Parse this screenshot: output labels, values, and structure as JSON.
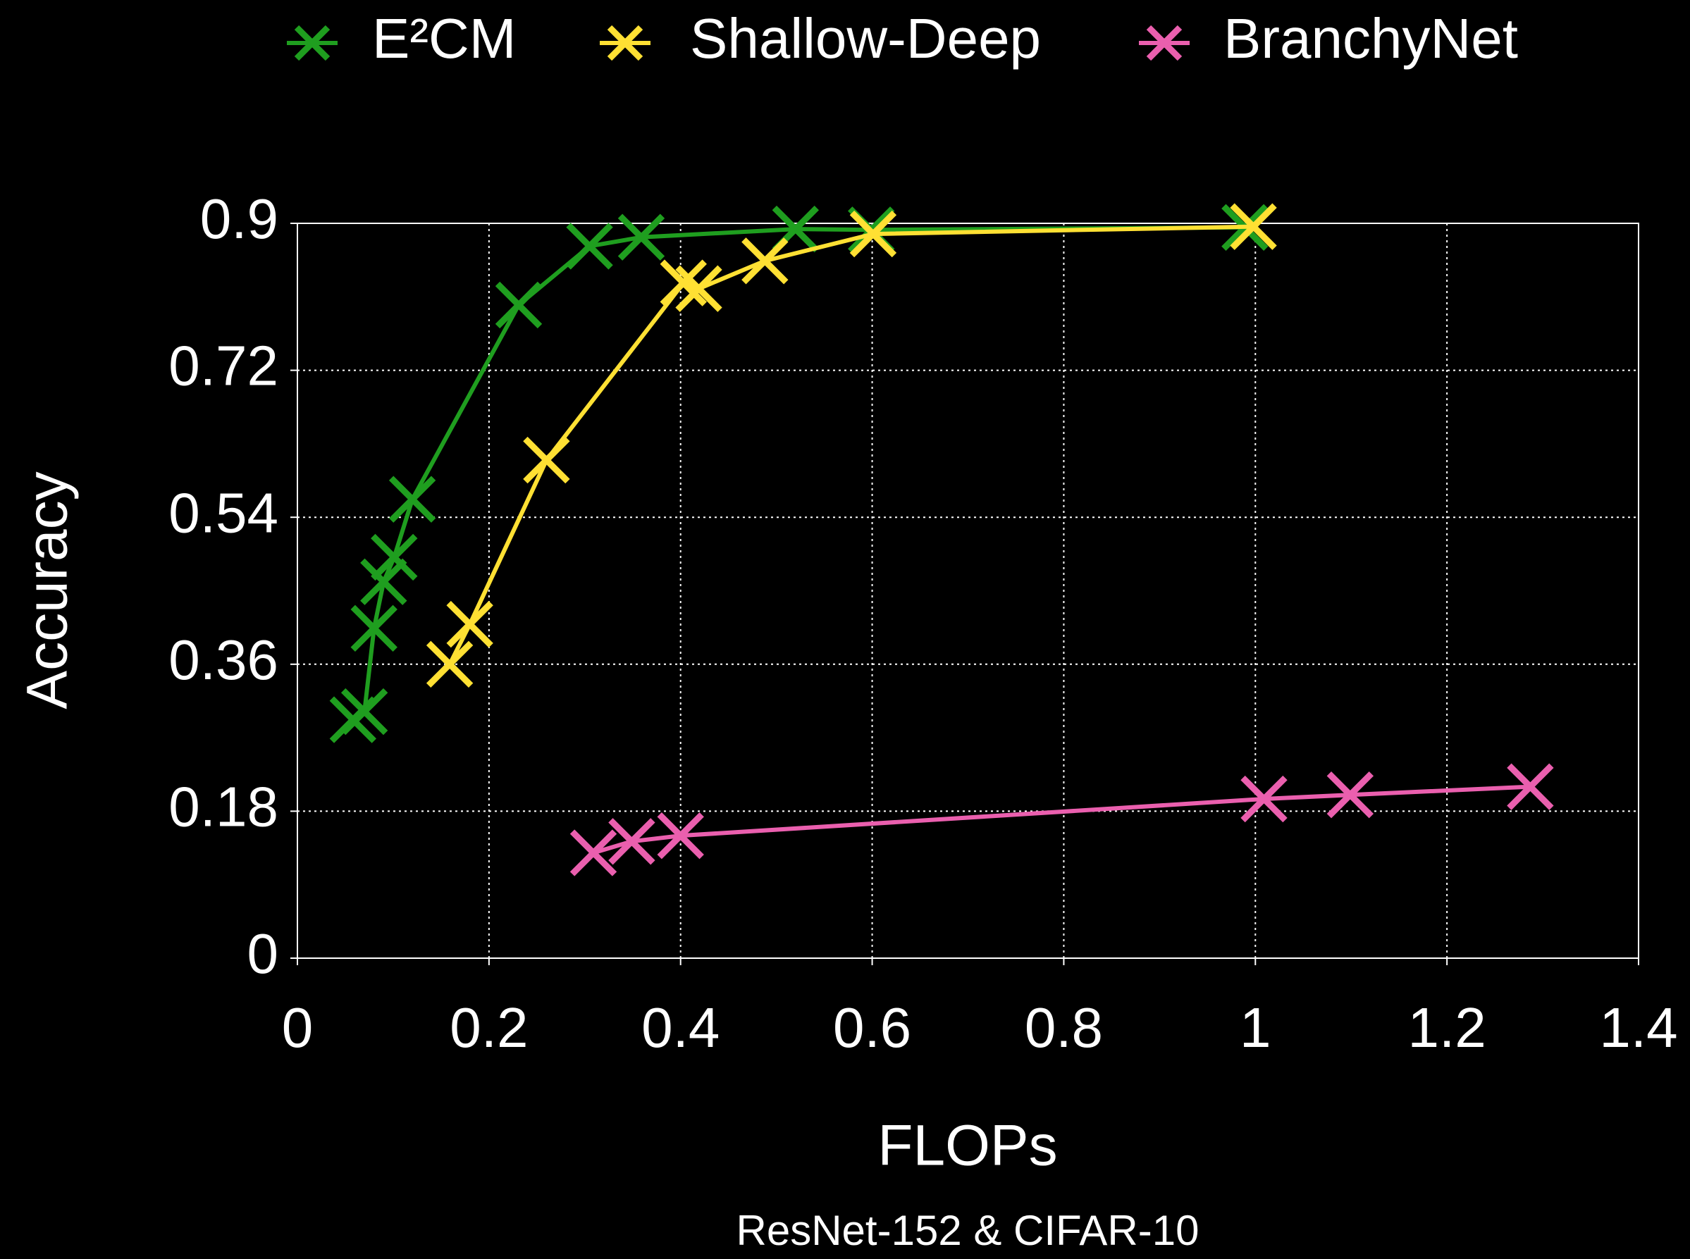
{
  "chart_data": {
    "type": "line",
    "title": "ResNet-152 & CIFAR-10",
    "x_label": "FLOPs",
    "y_label": "Accuracy",
    "xlim": [
      0,
      1.4
    ],
    "xticks": [
      0,
      0.2,
      0.4,
      0.6,
      0.8,
      1,
      1.2,
      1.4
    ],
    "ylim": [
      0,
      0.9
    ],
    "yticks": [
      0,
      0.18,
      0.36,
      0.54,
      0.72,
      0.9
    ],
    "grid": true,
    "legend": "top",
    "series": [
      {
        "name": "E²CM",
        "color": "#1f9e1f",
        "x": [
          0.058,
          0.07,
          0.08,
          0.09,
          0.101,
          0.12,
          0.231,
          0.305,
          0.359,
          0.52,
          0.599,
          0.989
        ],
        "values": [
          0.292,
          0.302,
          0.404,
          0.461,
          0.491,
          0.562,
          0.8,
          0.872,
          0.883,
          0.893,
          0.892,
          0.895
        ]
      },
      {
        "name": "Shallow-Deep",
        "color": "#ffe033",
        "x": [
          0.159,
          0.18,
          0.26,
          0.403,
          0.419,
          0.488,
          0.601,
          0.998
        ],
        "values": [
          0.36,
          0.409,
          0.61,
          0.827,
          0.82,
          0.854,
          0.887,
          0.896
        ]
      },
      {
        "name": "BranchyNet",
        "color": "#ea5fae",
        "x": [
          0.309,
          0.349,
          0.4,
          1.009,
          1.099,
          1.287
        ],
        "values": [
          0.129,
          0.143,
          0.15,
          0.195,
          0.2,
          0.21
        ]
      }
    ]
  }
}
